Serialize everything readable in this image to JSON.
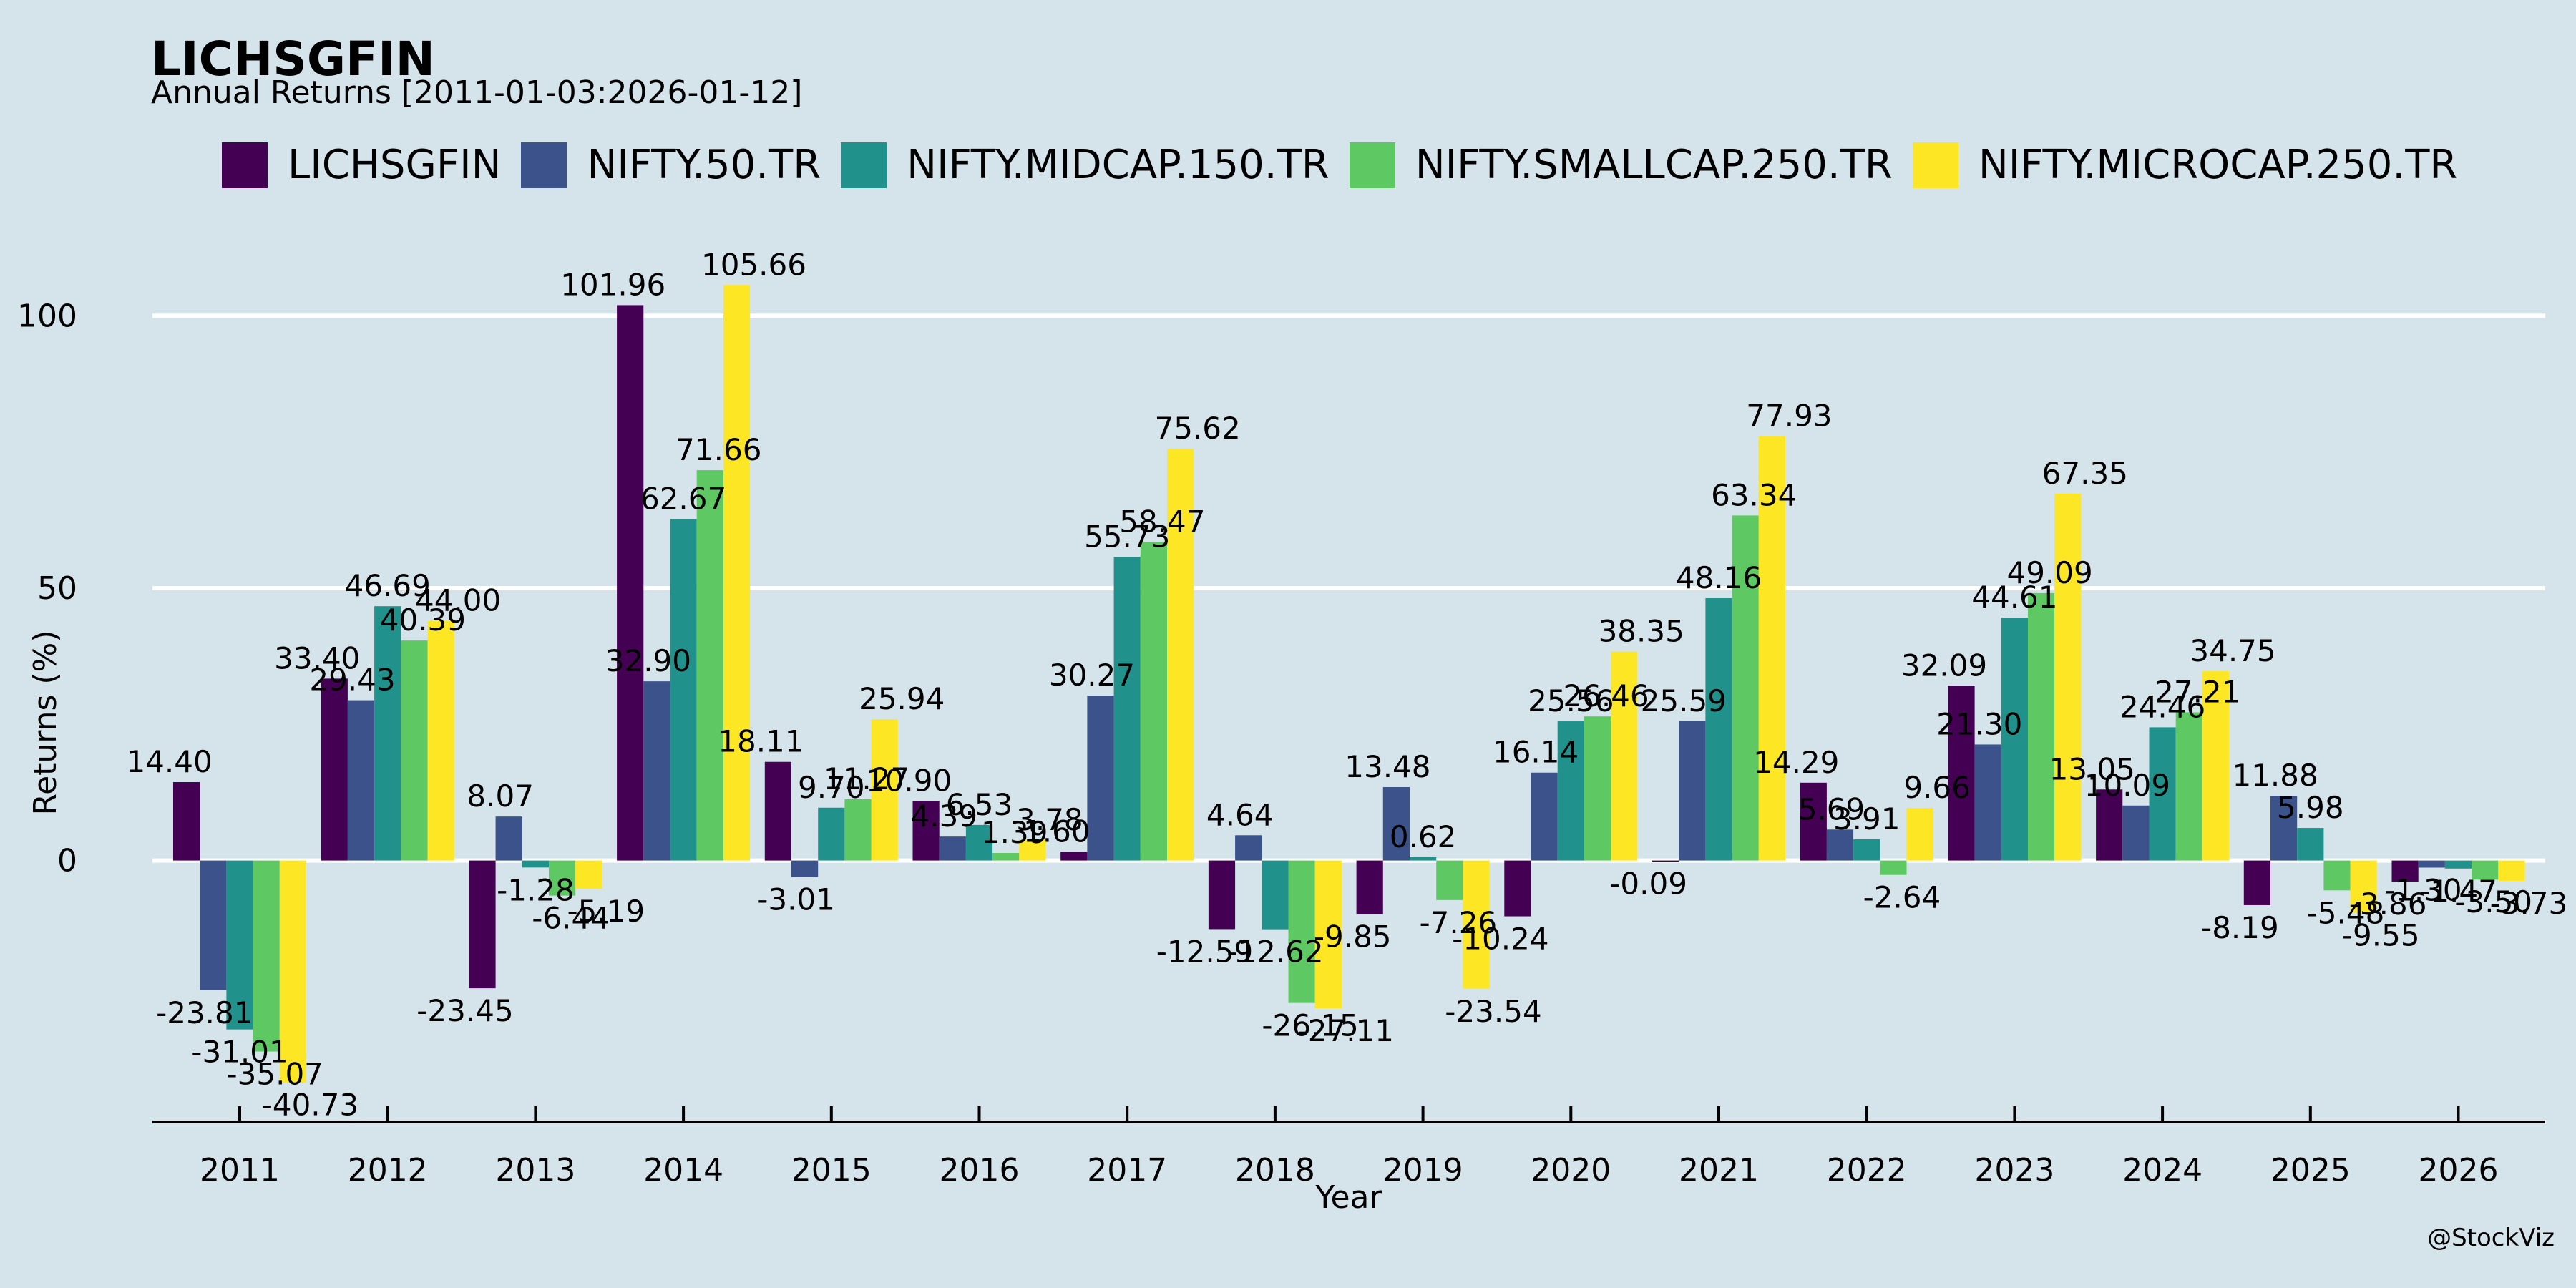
{
  "chart_data": {
    "type": "bar",
    "title": "LICHSGFIN",
    "subtitle": "Annual Returns [2011-01-03:2026-01-12]",
    "xlabel": "Year",
    "ylabel": "Returns (%)",
    "ylim": [
      -48,
      112
    ],
    "yticks": [
      0,
      50,
      100
    ],
    "grid": true,
    "legend_position": "top",
    "categories": [
      "2011",
      "2012",
      "2013",
      "2014",
      "2015",
      "2016",
      "2017",
      "2018",
      "2019",
      "2020",
      "2021",
      "2022",
      "2023",
      "2024",
      "2025",
      "2026"
    ],
    "series": [
      {
        "name": "LICHSGFIN",
        "color": "#440154",
        "values": [
          14.4,
          33.4,
          -23.45,
          101.96,
          18.11,
          10.9,
          1.6,
          -12.59,
          -9.85,
          -10.24,
          -0.09,
          14.29,
          32.09,
          13.05,
          -8.19,
          -3.86
        ]
      },
      {
        "name": "NIFTY.50.TR",
        "color": "#3b528b",
        "values": [
          -23.81,
          29.43,
          8.07,
          32.9,
          -3.01,
          4.39,
          30.27,
          4.64,
          13.48,
          16.14,
          25.59,
          5.69,
          21.3,
          10.09,
          11.88,
          -1.3
        ]
      },
      {
        "name": "NIFTY.MIDCAP.150.TR",
        "color": "#21918c",
        "values": [
          -31.01,
          46.69,
          -1.28,
          62.67,
          9.7,
          6.53,
          55.73,
          -12.62,
          0.62,
          25.56,
          48.16,
          3.91,
          44.61,
          24.46,
          5.98,
          -1.47
        ]
      },
      {
        "name": "NIFTY.SMALLCAP.250.TR",
        "color": "#5ec962",
        "values": [
          -35.07,
          40.39,
          -6.44,
          71.66,
          11.27,
          1.39,
          58.47,
          -26.15,
          -7.26,
          26.46,
          63.34,
          -2.64,
          49.09,
          27.21,
          -5.48,
          -3.5
        ]
      },
      {
        "name": "NIFTY.MICROCAP.250.TR",
        "color": "#fde725",
        "values": [
          -40.73,
          44.0,
          -5.19,
          105.66,
          25.94,
          3.78,
          75.62,
          -27.11,
          -23.54,
          38.35,
          77.93,
          9.66,
          67.35,
          34.75,
          -9.55,
          -3.73
        ]
      }
    ]
  },
  "watermark": "@StockViz"
}
